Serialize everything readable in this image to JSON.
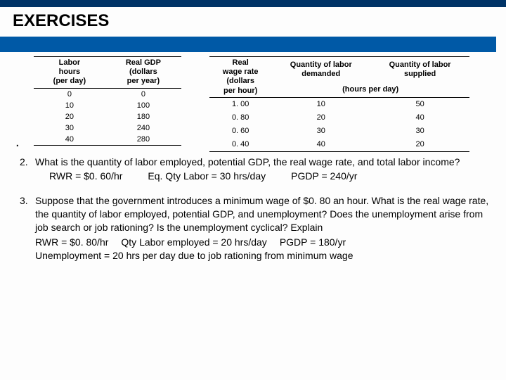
{
  "header": {
    "title": "EXERCISES"
  },
  "table1": {
    "headers": [
      "Labor\nhours\n(per day)",
      "Real GDP\n(dollars\nper year)"
    ],
    "rows": [
      [
        "0",
        "0"
      ],
      [
        "10",
        "100"
      ],
      [
        "20",
        "180"
      ],
      [
        "30",
        "240"
      ],
      [
        "40",
        "280"
      ]
    ]
  },
  "table2": {
    "headers": [
      "Real\nwage rate\n(dollars\nper hour)",
      "Quantity of labor\ndemanded",
      "Quantity of labor\nsupplied"
    ],
    "subheader": "(hours per day)",
    "rows": [
      [
        "1. 00",
        "10",
        "50"
      ],
      [
        "0. 80",
        "20",
        "40"
      ],
      [
        "0. 60",
        "30",
        "30"
      ],
      [
        "0. 40",
        "40",
        "20"
      ]
    ]
  },
  "q2": {
    "num": "2.",
    "text": "What is the quantity of labor employed, potential GDP, the real wage rate, and total labor income?",
    "ans1": "RWR = $0. 60/hr",
    "ans2": "Eq. Qty Labor = 30 hrs/day",
    "ans3": "PGDP = 240/yr"
  },
  "q3": {
    "num": "3.",
    "text": "Suppose that the government introduces a minimum wage of $0. 80 an hour. What is the real wage rate, the quantity of labor employed, potential GDP, and unemployment? Does the unemployment arise from job search or job rationing? Is the unemployment cyclical? Explain",
    "ans1": "RWR = $0. 80/hr",
    "ans2": "Qty Labor employed = 20 hrs/day",
    "ans3": "PGDP = 180/yr",
    "ans4": "Unemployment  = 20 hrs per day due to job rationing from minimum wage"
  },
  "bullet": "."
}
